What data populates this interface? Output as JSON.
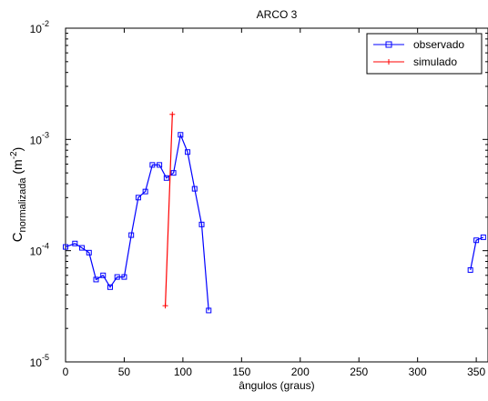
{
  "chart_data": {
    "type": "line",
    "title": "ARCO 3",
    "xlabel": "ângulos (graus)",
    "ylabel": {
      "base": "C",
      "sub": "normalizada",
      "unit_open": " (m",
      "unit_sup": "-2",
      "unit_close": ")"
    },
    "xlim": [
      0,
      360
    ],
    "ylim": [
      1e-05,
      0.01
    ],
    "yscale": "log",
    "grid": false,
    "legend_position": "top-right",
    "xticks": [
      0,
      50,
      100,
      150,
      200,
      250,
      300,
      350
    ],
    "yticks": [
      {
        "value": 1e-05,
        "base": "10",
        "exp": "-5"
      },
      {
        "value": 0.0001,
        "base": "10",
        "exp": "-4"
      },
      {
        "value": 0.001,
        "base": "10",
        "exp": "-3"
      },
      {
        "value": 0.01,
        "base": "10",
        "exp": "-2"
      }
    ],
    "series": [
      {
        "name": "observado",
        "color": "#0000ff",
        "marker": "square",
        "segments": [
          [
            [
              0,
              0.000108
            ],
            [
              8,
              0.000116
            ],
            [
              14,
              0.000106
            ],
            [
              20,
              9.6e-05
            ],
            [
              26,
              5.5e-05
            ],
            [
              32,
              6e-05
            ],
            [
              38,
              4.7e-05
            ],
            [
              44,
              5.8e-05
            ],
            [
              50,
              5.8e-05
            ],
            [
              56,
              0.000138
            ],
            [
              62,
              0.0003
            ],
            [
              68,
              0.00034
            ],
            [
              74,
              0.00059
            ],
            [
              80,
              0.00059
            ],
            [
              86,
              0.00045
            ],
            [
              92,
              0.0005
            ],
            [
              98,
              0.0011
            ],
            [
              104,
              0.00077
            ],
            [
              110,
              0.00036
            ],
            [
              116,
              0.000172
            ],
            [
              122,
              2.9e-05
            ]
          ],
          [
            [
              345,
              6.7e-05
            ],
            [
              350,
              0.000124
            ],
            [
              356,
              0.000132
            ]
          ]
        ]
      },
      {
        "name": "simulado",
        "color": "#ff0000",
        "marker": "plus",
        "segments": [
          [
            [
              85,
              3.2e-05
            ],
            [
              91,
              0.00168
            ]
          ]
        ]
      }
    ]
  }
}
